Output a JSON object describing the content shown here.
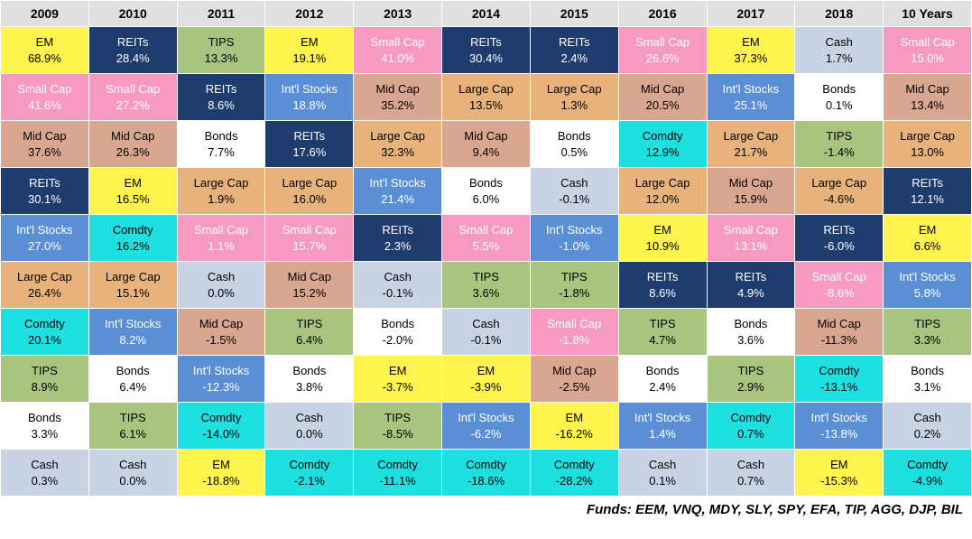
{
  "columns": [
    "2009",
    "2010",
    "2011",
    "2012",
    "2013",
    "2014",
    "2015",
    "2016",
    "2017",
    "2018",
    "10 Years"
  ],
  "asset_colors": {
    "EM": {
      "bg": "#fff34d",
      "fg": "#000000"
    },
    "REITs": {
      "bg": "#1f3c6e",
      "fg": "#ffffff"
    },
    "TIPS": {
      "bg": "#a9c47f",
      "fg": "#000000"
    },
    "Small Cap": {
      "bg": "#f79ac0",
      "fg": "#ffffff"
    },
    "Mid Cap": {
      "bg": "#d9a78f",
      "fg": "#000000"
    },
    "Large Cap": {
      "bg": "#e8b27d",
      "fg": "#000000"
    },
    "Int'l Stocks": {
      "bg": "#5a8fd6",
      "fg": "#ffffff"
    },
    "Comdty": {
      "bg": "#1fe0e0",
      "fg": "#000000"
    },
    "Bonds": {
      "bg": "#ffffff",
      "fg": "#000000"
    },
    "Cash": {
      "bg": "#c8d4e3",
      "fg": "#000000"
    }
  },
  "grid": [
    [
      {
        "a": "EM",
        "r": "68.9%"
      },
      {
        "a": "REITs",
        "r": "28.4%"
      },
      {
        "a": "TIPS",
        "r": "13.3%"
      },
      {
        "a": "EM",
        "r": "19.1%"
      },
      {
        "a": "Small Cap",
        "r": "41.0%"
      },
      {
        "a": "REITs",
        "r": "30.4%"
      },
      {
        "a": "REITs",
        "r": "2.4%"
      },
      {
        "a": "Small Cap",
        "r": "26.6%"
      },
      {
        "a": "EM",
        "r": "37.3%"
      },
      {
        "a": "Cash",
        "r": "1.7%"
      },
      {
        "a": "Small Cap",
        "r": "15.0%"
      }
    ],
    [
      {
        "a": "Small Cap",
        "r": "41.6%"
      },
      {
        "a": "Small Cap",
        "r": "27.2%"
      },
      {
        "a": "REITs",
        "r": "8.6%"
      },
      {
        "a": "Int'l Stocks",
        "r": "18.8%"
      },
      {
        "a": "Mid Cap",
        "r": "35.2%"
      },
      {
        "a": "Large Cap",
        "r": "13.5%"
      },
      {
        "a": "Large Cap",
        "r": "1.3%"
      },
      {
        "a": "Mid Cap",
        "r": "20.5%"
      },
      {
        "a": "Int'l Stocks",
        "r": "25.1%"
      },
      {
        "a": "Bonds",
        "r": "0.1%"
      },
      {
        "a": "Mid Cap",
        "r": "13.4%"
      }
    ],
    [
      {
        "a": "Mid Cap",
        "r": "37.6%"
      },
      {
        "a": "Mid Cap",
        "r": "26.3%"
      },
      {
        "a": "Bonds",
        "r": "7.7%"
      },
      {
        "a": "REITs",
        "r": "17.6%"
      },
      {
        "a": "Large Cap",
        "r": "32.3%"
      },
      {
        "a": "Mid Cap",
        "r": "9.4%"
      },
      {
        "a": "Bonds",
        "r": "0.5%"
      },
      {
        "a": "Comdty",
        "r": "12.9%"
      },
      {
        "a": "Large Cap",
        "r": "21.7%"
      },
      {
        "a": "TIPS",
        "r": "-1.4%"
      },
      {
        "a": "Large Cap",
        "r": "13.0%"
      }
    ],
    [
      {
        "a": "REITs",
        "r": "30.1%"
      },
      {
        "a": "EM",
        "r": "16.5%"
      },
      {
        "a": "Large Cap",
        "r": "1.9%"
      },
      {
        "a": "Large Cap",
        "r": "16.0%"
      },
      {
        "a": "Int'l Stocks",
        "r": "21.4%"
      },
      {
        "a": "Bonds",
        "r": "6.0%"
      },
      {
        "a": "Cash",
        "r": "-0.1%"
      },
      {
        "a": "Large Cap",
        "r": "12.0%"
      },
      {
        "a": "Mid Cap",
        "r": "15.9%"
      },
      {
        "a": "Large Cap",
        "r": "-4.6%"
      },
      {
        "a": "REITs",
        "r": "12.1%"
      }
    ],
    [
      {
        "a": "Int'l Stocks",
        "r": "27.0%"
      },
      {
        "a": "Comdty",
        "r": "16.2%"
      },
      {
        "a": "Small Cap",
        "r": "1.1%"
      },
      {
        "a": "Small Cap",
        "r": "15.7%"
      },
      {
        "a": "REITs",
        "r": "2.3%"
      },
      {
        "a": "Small Cap",
        "r": "5.5%"
      },
      {
        "a": "Int'l Stocks",
        "r": "-1.0%"
      },
      {
        "a": "EM",
        "r": "10.9%"
      },
      {
        "a": "Small Cap",
        "r": "13.1%"
      },
      {
        "a": "REITs",
        "r": "-6.0%"
      },
      {
        "a": "EM",
        "r": "6.6%"
      }
    ],
    [
      {
        "a": "Large Cap",
        "r": "26.4%"
      },
      {
        "a": "Large Cap",
        "r": "15.1%"
      },
      {
        "a": "Cash",
        "r": "0.0%"
      },
      {
        "a": "Mid Cap",
        "r": "15.2%"
      },
      {
        "a": "Cash",
        "r": "-0.1%"
      },
      {
        "a": "TIPS",
        "r": "3.6%"
      },
      {
        "a": "TIPS",
        "r": "-1.8%"
      },
      {
        "a": "REITs",
        "r": "8.6%"
      },
      {
        "a": "REITs",
        "r": "4.9%"
      },
      {
        "a": "Small Cap",
        "r": "-8.6%"
      },
      {
        "a": "Int'l Stocks",
        "r": "5.8%"
      }
    ],
    [
      {
        "a": "Comdty",
        "r": "20.1%"
      },
      {
        "a": "Int'l Stocks",
        "r": "8.2%"
      },
      {
        "a": "Mid Cap",
        "r": "-1.5%"
      },
      {
        "a": "TIPS",
        "r": "6.4%"
      },
      {
        "a": "Bonds",
        "r": "-2.0%"
      },
      {
        "a": "Cash",
        "r": "-0.1%"
      },
      {
        "a": "Small Cap",
        "r": "-1.8%"
      },
      {
        "a": "TIPS",
        "r": "4.7%"
      },
      {
        "a": "Bonds",
        "r": "3.6%"
      },
      {
        "a": "Mid Cap",
        "r": "-11.3%"
      },
      {
        "a": "TIPS",
        "r": "3.3%"
      }
    ],
    [
      {
        "a": "TIPS",
        "r": "8.9%"
      },
      {
        "a": "Bonds",
        "r": "6.4%"
      },
      {
        "a": "Int'l Stocks",
        "r": "-12.3%"
      },
      {
        "a": "Bonds",
        "r": "3.8%"
      },
      {
        "a": "EM",
        "r": "-3.7%"
      },
      {
        "a": "EM",
        "r": "-3.9%"
      },
      {
        "a": "Mid Cap",
        "r": "-2.5%"
      },
      {
        "a": "Bonds",
        "r": "2.4%"
      },
      {
        "a": "TIPS",
        "r": "2.9%"
      },
      {
        "a": "Comdty",
        "r": "-13.1%"
      },
      {
        "a": "Bonds",
        "r": "3.1%"
      }
    ],
    [
      {
        "a": "Bonds",
        "r": "3.3%"
      },
      {
        "a": "TIPS",
        "r": "6.1%"
      },
      {
        "a": "Comdty",
        "r": "-14.0%"
      },
      {
        "a": "Cash",
        "r": "0.0%"
      },
      {
        "a": "TIPS",
        "r": "-8.5%"
      },
      {
        "a": "Int'l Stocks",
        "r": "-6.2%"
      },
      {
        "a": "EM",
        "r": "-16.2%"
      },
      {
        "a": "Int'l Stocks",
        "r": "1.4%"
      },
      {
        "a": "Comdty",
        "r": "0.7%"
      },
      {
        "a": "Int'l Stocks",
        "r": "-13.8%"
      },
      {
        "a": "Cash",
        "r": "0.2%"
      }
    ],
    [
      {
        "a": "Cash",
        "r": "0.3%"
      },
      {
        "a": "Cash",
        "r": "0.0%"
      },
      {
        "a": "EM",
        "r": "-18.8%"
      },
      {
        "a": "Comdty",
        "r": "-2.1%"
      },
      {
        "a": "Comdty",
        "r": "-11.1%"
      },
      {
        "a": "Comdty",
        "r": "-18.6%"
      },
      {
        "a": "Comdty",
        "r": "-28.2%"
      },
      {
        "a": "Cash",
        "r": "0.1%"
      },
      {
        "a": "Cash",
        "r": "0.7%"
      },
      {
        "a": "EM",
        "r": "-15.3%"
      },
      {
        "a": "Comdty",
        "r": "-4.9%"
      }
    ]
  ],
  "footer": "Funds: EEM, VNQ, MDY, SLY, SPY, EFA, TIP, AGG, DJP, BIL"
}
